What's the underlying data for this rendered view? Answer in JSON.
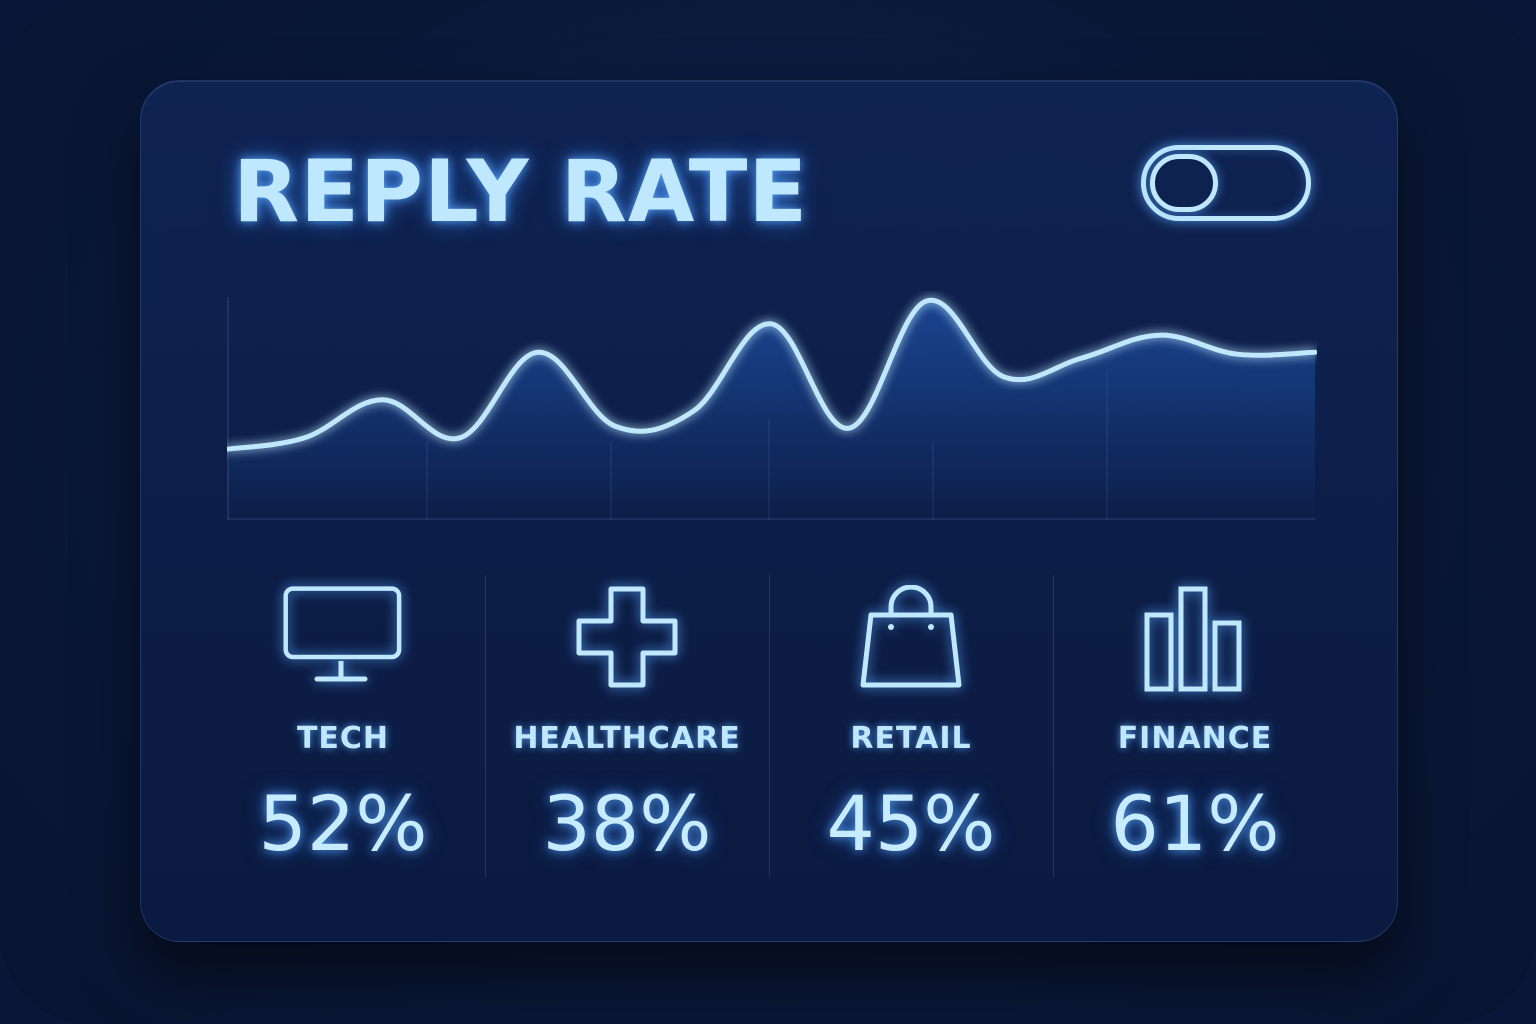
{
  "widget": {
    "title": "REPLY RATE",
    "toggle": {
      "state": "off"
    }
  },
  "colors": {
    "accent": "#bfe8ff",
    "glow": "#4da6ff",
    "background": "#0b1a40"
  },
  "chart_data": {
    "type": "line",
    "title": "REPLY RATE",
    "xlabel": "",
    "ylabel": "",
    "grid": "vertical",
    "ylim": [
      0,
      100
    ],
    "x": [
      0,
      1,
      2,
      3,
      4,
      5,
      6,
      7,
      8,
      9,
      10,
      11,
      12,
      13,
      14
    ],
    "series": [
      {
        "values": [
          22,
          28,
          48,
          28,
          73,
          34,
          42,
          88,
          33,
          100,
          60,
          70,
          82,
          72,
          73
        ]
      }
    ]
  },
  "stats": [
    {
      "label": "TECH",
      "value": "52%",
      "icon": "monitor-icon"
    },
    {
      "label": "HEALTHCARE",
      "value": "38%",
      "icon": "medical-cross-icon"
    },
    {
      "label": "RETAIL",
      "value": "45%",
      "icon": "shopping-bag-icon"
    },
    {
      "label": "FINANCE",
      "value": "61%",
      "icon": "bar-chart-icon"
    }
  ]
}
